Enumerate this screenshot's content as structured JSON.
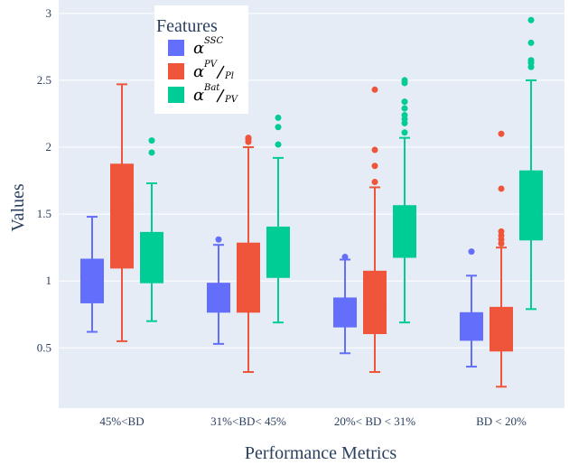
{
  "chart_data": {
    "type": "box",
    "xlabel": "Performance Metrics",
    "ylabel": "Values",
    "ylim": [
      0.05,
      3.1
    ],
    "yticks": [
      0.5,
      1,
      1.5,
      2,
      2.5,
      3
    ],
    "ytick_labels": [
      "0.5",
      "1",
      "1.5",
      "2",
      "2.5",
      "3"
    ],
    "grid": true,
    "legend": {
      "title": "Features",
      "placement": "top-left"
    },
    "categories": [
      "45%<BD",
      "31%<BD< 45%",
      "20%< BD < 31%",
      "BD < 20%"
    ],
    "series": [
      {
        "base": "α",
        "sup": "SSC",
        "sub": "",
        "color": "#636efa",
        "boxes": [
          {
            "min": 0.62,
            "q1": 0.84,
            "median": 0.95,
            "q3": 1.16,
            "max": 1.48,
            "outliers": []
          },
          {
            "min": 0.53,
            "q1": 0.77,
            "median": 0.86,
            "q3": 0.98,
            "max": 1.27,
            "outliers": [
              1.31
            ]
          },
          {
            "min": 0.46,
            "q1": 0.66,
            "median": 0.75,
            "q3": 0.87,
            "max": 1.16,
            "outliers": [
              1.18
            ]
          },
          {
            "min": 0.36,
            "q1": 0.56,
            "median": 0.66,
            "q3": 0.76,
            "max": 1.04,
            "outliers": [
              1.22
            ]
          }
        ]
      },
      {
        "base": "α",
        "sup": "PV",
        "sub": "Pl",
        "color": "#ef553b",
        "boxes": [
          {
            "min": 0.55,
            "q1": 1.1,
            "median": 1.55,
            "q3": 1.87,
            "max": 2.47,
            "outliers": []
          },
          {
            "min": 0.32,
            "q1": 0.77,
            "median": 0.98,
            "q3": 1.28,
            "max": 2.0,
            "outliers": [
              2.04,
              2.06,
              2.07
            ]
          },
          {
            "min": 0.32,
            "q1": 0.61,
            "median": 0.8,
            "q3": 1.07,
            "max": 1.7,
            "outliers": [
              1.74,
              1.86,
              1.98,
              2.43
            ]
          },
          {
            "min": 0.21,
            "q1": 0.48,
            "median": 0.62,
            "q3": 0.8,
            "max": 1.25,
            "outliers": [
              1.28,
              1.31,
              1.34,
              1.37,
              1.69,
              2.1
            ]
          }
        ]
      },
      {
        "base": "α",
        "sup": "Bat",
        "sub": "PV",
        "color": "#00cc96",
        "boxes": [
          {
            "min": 0.7,
            "q1": 0.99,
            "median": 1.14,
            "q3": 1.36,
            "max": 1.73,
            "outliers": [
              1.96,
              2.05
            ]
          },
          {
            "min": 0.69,
            "q1": 1.03,
            "median": 1.17,
            "q3": 1.4,
            "max": 1.92,
            "outliers": [
              2.02,
              2.15,
              2.22
            ]
          },
          {
            "min": 0.69,
            "q1": 1.18,
            "median": 1.36,
            "q3": 1.56,
            "max": 2.07,
            "outliers": [
              2.11,
              2.18,
              2.21,
              2.24,
              2.29,
              2.34,
              2.48,
              2.5
            ]
          },
          {
            "min": 0.79,
            "q1": 1.31,
            "median": 1.52,
            "q3": 1.82,
            "max": 2.5,
            "outliers": [
              2.6,
              2.63,
              2.65,
              2.78,
              2.95
            ]
          }
        ]
      }
    ]
  }
}
